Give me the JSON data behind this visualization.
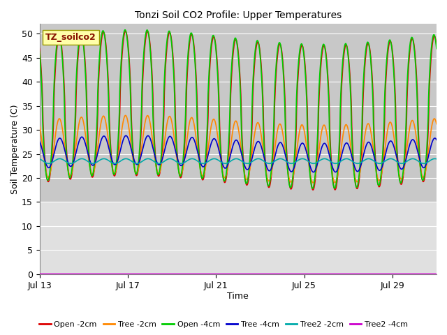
{
  "title": "Tonzi Soil CO2 Profile: Upper Temperatures",
  "xlabel": "Time",
  "ylabel": "Soil Temperature (C)",
  "ylim": [
    0,
    52
  ],
  "yticks": [
    0,
    5,
    10,
    15,
    20,
    25,
    30,
    35,
    40,
    45,
    50
  ],
  "xtick_labels": [
    "Jul 13",
    "Jul 17",
    "Jul 21",
    "Jul 25",
    "Jul 29"
  ],
  "xtick_positions": [
    0,
    4,
    8,
    12,
    16
  ],
  "xlim": [
    0,
    18
  ],
  "bg_color": "#d8d8d8",
  "upper_bg_color": "#c8c8c8",
  "lower_bg_color": "#e0e0e0",
  "label_box_color": "#ffffaa",
  "label_box_text": "TZ_soilco2",
  "series": [
    {
      "name": "Open -2cm",
      "color": "#dd0000",
      "lw": 1.2
    },
    {
      "name": "Tree -2cm",
      "color": "#ff8800",
      "lw": 1.2
    },
    {
      "name": "Open -4cm",
      "color": "#00cc00",
      "lw": 1.2
    },
    {
      "name": "Tree -4cm",
      "color": "#0000cc",
      "lw": 1.2
    },
    {
      "name": "Tree2 -2cm",
      "color": "#00aaaa",
      "lw": 1.2
    },
    {
      "name": "Tree2 -4cm",
      "color": "#cc00cc",
      "lw": 1.2
    }
  ],
  "open2_amp": 30,
  "open2_min": 19,
  "tree2cm_amp": 12,
  "tree2cm_min": 20,
  "open4_amp": 30,
  "open4_min": 19,
  "tree4_amp": 6,
  "tree4_min": 22,
  "tree2_2_amp": 1.0,
  "tree2_2_min": 23.0,
  "tree2_4_val": 0.05,
  "n_days": 18,
  "ppd": 144
}
